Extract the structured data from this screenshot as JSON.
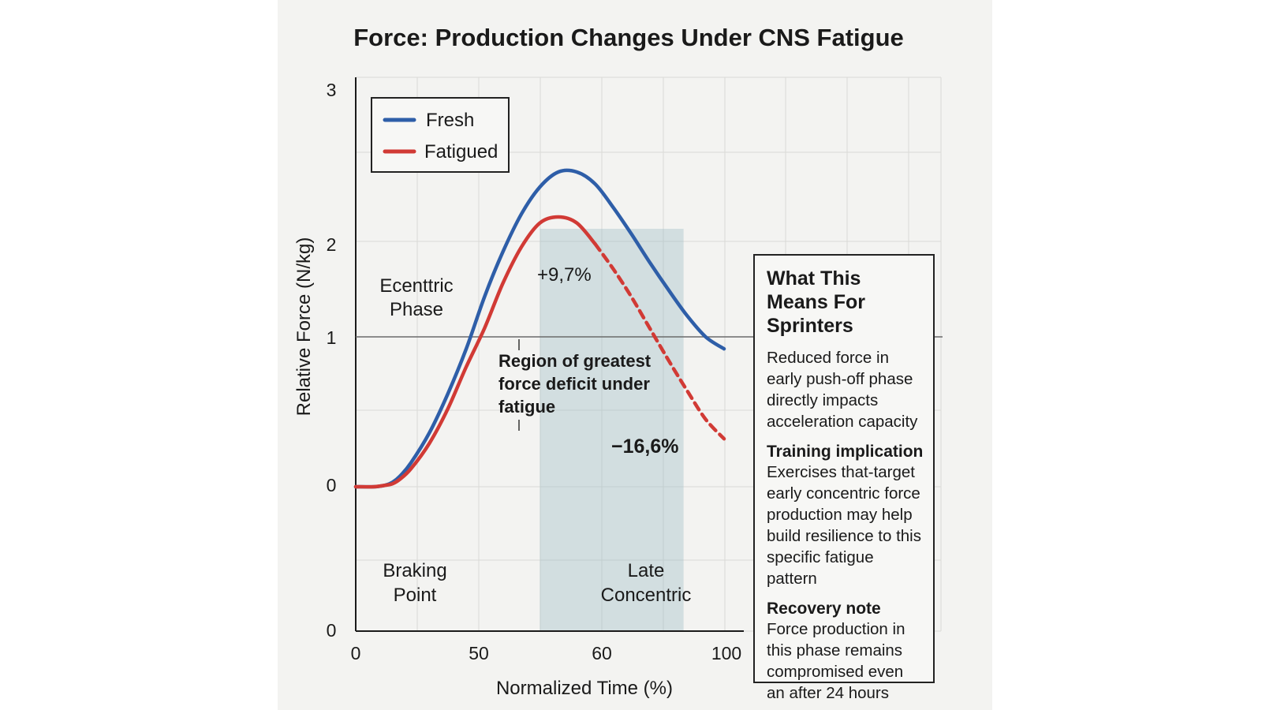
{
  "chart_data": {
    "type": "line",
    "title": "Force: Production Changes Under CNS Fatigue",
    "xlabel": "Normalized Time (%)",
    "ylabel": "Relative Force (N/kg)",
    "x_tick_labels": [
      "0",
      "50",
      "60",
      "100"
    ],
    "y_tick_labels": [
      "3",
      "2",
      "1",
      "0",
      "0"
    ],
    "grid": true,
    "legend_position": "top-left",
    "series": [
      {
        "name": "Fresh",
        "color": "#2e5ea8",
        "x": [
          0,
          5,
          8,
          10,
          12,
          15,
          20,
          25,
          30,
          35,
          40,
          45,
          50,
          55,
          60,
          65,
          70,
          75,
          80,
          85,
          90,
          95,
          100
        ],
        "y": [
          0,
          0,
          0.01,
          0.03,
          0.07,
          0.16,
          0.36,
          0.62,
          0.92,
          1.27,
          1.57,
          1.82,
          2.0,
          2.1,
          2.1,
          2.02,
          1.86,
          1.68,
          1.49,
          1.31,
          1.14,
          1.0,
          0.92
        ]
      },
      {
        "name": "Fatigued",
        "color": "#d13a35",
        "dashed_from_x": 65,
        "x": [
          0,
          5,
          8,
          10,
          12,
          15,
          20,
          25,
          30,
          35,
          40,
          45,
          50,
          55,
          60,
          65,
          70,
          75,
          80,
          85,
          90,
          95,
          100
        ],
        "y": [
          0,
          0,
          0.01,
          0.02,
          0.05,
          0.12,
          0.29,
          0.52,
          0.8,
          1.06,
          1.36,
          1.6,
          1.76,
          1.8,
          1.76,
          1.62,
          1.45,
          1.26,
          1.05,
          0.84,
          0.64,
          0.45,
          0.32
        ]
      }
    ],
    "shaded_region": {
      "x_start": 50,
      "x_end": 89,
      "label": "Region of greatest force deficit under fatigue"
    },
    "annotations": [
      {
        "text": "+9,7%"
      },
      {
        "text": "−16,6%"
      },
      {
        "text": "Ecenttric Phase"
      },
      {
        "text": "Braking Point"
      },
      {
        "text": "Late Concentric"
      }
    ]
  },
  "legend": {
    "fresh_label": "Fresh",
    "fatigued_label": "Fatigued"
  },
  "info_box": {
    "title": "What This Means For Sprinters",
    "intro": "Reduced force in early push-off phase directly impacts acceleration capacity",
    "training_heading": "Training implication",
    "training_text": "Exercises that-target early concentric force production may help build resilience to this specific fatigue pattern",
    "recovery_heading": "Recovery note",
    "recovery_text": "Force production in this phase remains compromised even an after 24 hours"
  }
}
